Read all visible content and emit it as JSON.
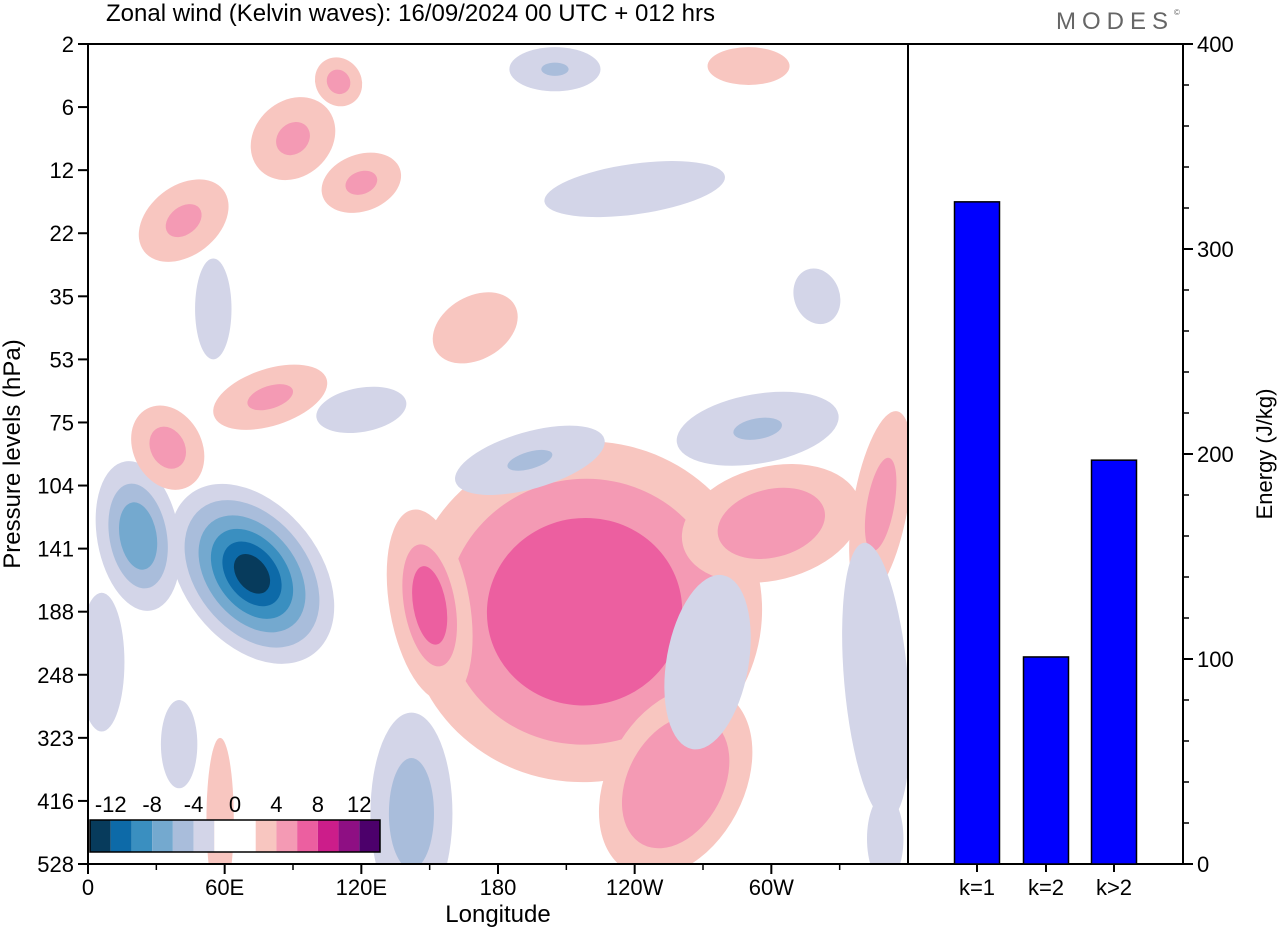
{
  "header": {
    "title": "Zonal wind (Kelvin waves):  16/09/2024  00 UTC  + 012 hrs",
    "brand": "MODES",
    "brand_mark": "©"
  },
  "colors": {
    "bar_fill": "#0000ff",
    "neg_light": "#d3d5e8",
    "neg_2": "#a9bddb",
    "neg_3": "#74a9cf",
    "neg_4": "#3a8fc0",
    "neg_5": "#0d6aa8",
    "neg_6": "#073b5c",
    "pos_light": "#f8c6c0",
    "pos_2": "#f49ab4",
    "pos_3": "#ec5fa0",
    "pos_4": "#cc1d8a",
    "pos_5": "#8e0f83",
    "pos_6": "#4c006b"
  },
  "chart_data": [
    {
      "type": "heatmap",
      "title": "Zonal wind (Kelvin waves):  16/09/2024  00 UTC  + 012 hrs",
      "xlabel": "Longitude",
      "ylabel": "Pressure levels (hPa)",
      "x_ticks": [
        "0",
        "60E",
        "120E",
        "180",
        "120W",
        "60W"
      ],
      "x_tick_degrees": [
        0,
        60,
        120,
        180,
        240,
        300
      ],
      "xlim": [
        0,
        360
      ],
      "y_ticks": [
        "2",
        "6",
        "12",
        "22",
        "35",
        "53",
        "75",
        "104",
        "141",
        "188",
        "248",
        "323",
        "416",
        "528"
      ],
      "colorbar": {
        "labels": [
          "-12",
          "-8",
          "-4",
          "0",
          "4",
          "8",
          "12"
        ],
        "label_values": [
          -12,
          -8,
          -4,
          0,
          4,
          8,
          12
        ],
        "levels": [
          -14,
          -12,
          -10,
          -8,
          -6,
          -4,
          -2,
          2,
          4,
          6,
          8,
          10,
          12,
          14
        ]
      },
      "features": [
        {
          "name": "negative-core",
          "sign": "negative",
          "lon": 80,
          "level_index": 8,
          "peak": -13
        },
        {
          "name": "positive-core-central-pacific",
          "sign": "positive",
          "lon": 223,
          "level_index": 8.5,
          "peak": 8
        },
        {
          "name": "positive-core-150e",
          "sign": "positive",
          "lon": 150,
          "level_index": 9,
          "peak": 7
        },
        {
          "name": "positive-core-lower",
          "sign": "positive",
          "lon": 262,
          "level_index": 12,
          "peak": 6
        },
        {
          "name": "positive-core-east",
          "sign": "positive",
          "lon": 310,
          "level_index": 7.5,
          "peak": 6
        }
      ]
    },
    {
      "type": "bar",
      "categories": [
        "k=1",
        "k=2",
        "k>2"
      ],
      "values": [
        323,
        101,
        197
      ],
      "ylabel": "Energy (J/kg)",
      "ylim": [
        0,
        400
      ],
      "y_ticks": [
        0,
        100,
        200,
        300,
        400
      ]
    }
  ]
}
